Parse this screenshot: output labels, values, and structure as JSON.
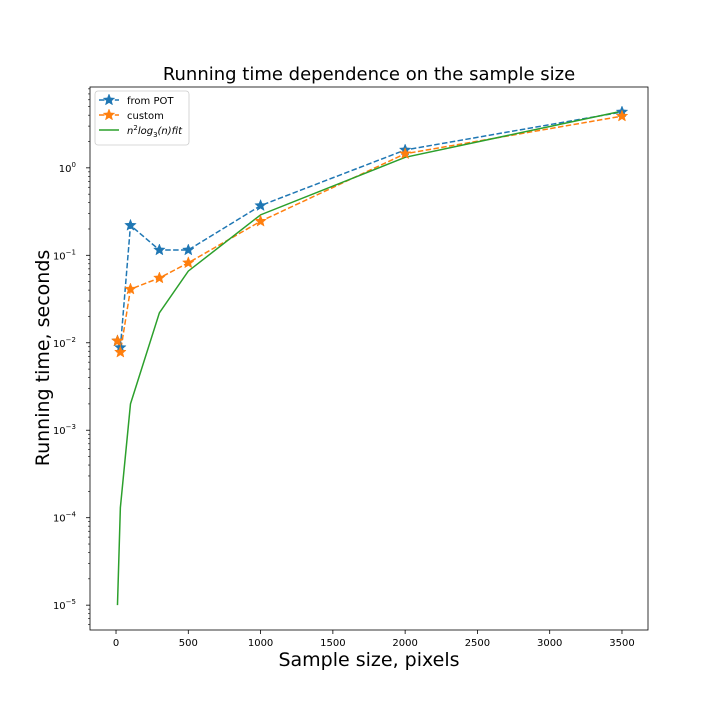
{
  "chart_data": {
    "type": "line",
    "title": "Running time dependence on the sample size",
    "xlabel": "Sample size, pixels",
    "ylabel": "Running time, seconds",
    "xlim": [
      -180,
      3680
    ],
    "ylim": [
      5.2e-06,
      8.4
    ],
    "xscale": "linear",
    "yscale": "log",
    "grid": false,
    "legend_position": "top-left",
    "x_ticks": [
      0,
      500,
      1000,
      1500,
      2000,
      2500,
      3000,
      3500
    ],
    "x_tick_labels": [
      "0",
      "500",
      "1000",
      "1500",
      "2000",
      "2500",
      "3000",
      "3500"
    ],
    "y_ticks": [
      1e-05,
      0.0001,
      0.001,
      0.01,
      0.1,
      1
    ],
    "y_tick_labels": [
      {
        "base": "10",
        "exp": "−5"
      },
      {
        "base": "10",
        "exp": "−4"
      },
      {
        "base": "10",
        "exp": "−3"
      },
      {
        "base": "10",
        "exp": "−2"
      },
      {
        "base": "10",
        "exp": "−1"
      },
      {
        "base": "10",
        "exp": "0"
      }
    ],
    "series": [
      {
        "name": "from POT",
        "color": "#1f77b4",
        "style": "dashed",
        "marker": "star",
        "x": [
          10,
          30,
          100,
          300,
          500,
          1000,
          2000,
          3500
        ],
        "y": [
          0.0105,
          0.0088,
          0.22,
          0.115,
          0.115,
          0.37,
          1.6,
          4.35
        ]
      },
      {
        "name": "custom",
        "color": "#ff7f0e",
        "style": "dashed",
        "marker": "star",
        "x": [
          10,
          30,
          100,
          300,
          500,
          1000,
          2000,
          3500
        ],
        "y": [
          0.0105,
          0.0078,
          0.041,
          0.055,
          0.082,
          0.245,
          1.45,
          3.9
        ]
      },
      {
        "name": "fit_legend",
        "color": "#2ca02c",
        "style": "solid",
        "marker": "none",
        "x": [
          10,
          30,
          100,
          300,
          500,
          1000,
          2000,
          3500
        ],
        "y": [
          1e-05,
          0.00013,
          0.002,
          0.022,
          0.066,
          0.29,
          1.32,
          4.45
        ]
      }
    ],
    "legend_labels": [
      {
        "key": "from POT",
        "text": "from POT"
      },
      {
        "key": "custom",
        "text": "custom"
      },
      {
        "key": "fit",
        "text_parts": [
          "n",
          "2",
          "log",
          "3",
          "(n)fit"
        ]
      }
    ]
  }
}
